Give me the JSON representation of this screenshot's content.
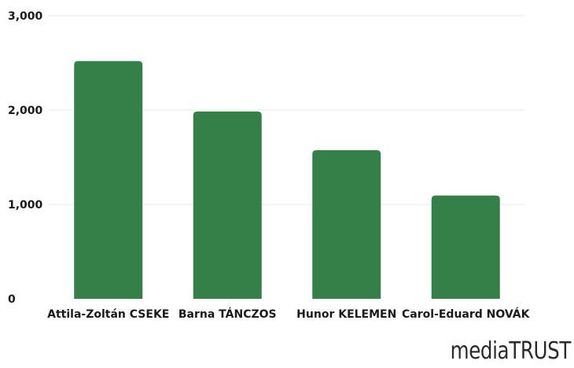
{
  "chart_data": {
    "type": "bar",
    "categories": [
      "Attila-Zoltán CSEKE",
      "Barna TÁNCZOS",
      "Hunor KELEMEN",
      "Carol-Eduard NOVÁK"
    ],
    "values": [
      2520,
      1985,
      1575,
      1095
    ],
    "yticks": [
      0,
      1000,
      2000,
      3000
    ],
    "ytick_labels": [
      "0",
      "1,000",
      "2,000",
      "3,000"
    ],
    "ylim": [
      0,
      3000
    ],
    "bar_color": "#358049",
    "grid_color": "#e8e8e8",
    "grid": true
  },
  "logo": {
    "part1": "media",
    "part2": "TRUST"
  }
}
